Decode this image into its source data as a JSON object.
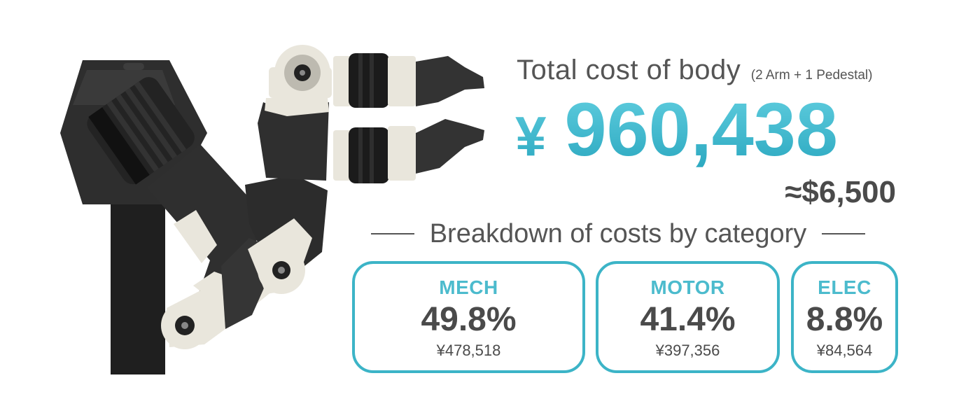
{
  "header": {
    "title": "Total cost of body",
    "subtitle": "(2 Arm + 1 Pedestal)"
  },
  "total": {
    "currency_symbol": "¥",
    "amount": "960,438",
    "usd_equivalent": "≈$6,500"
  },
  "breakdown": {
    "label": "Breakdown of costs by category"
  },
  "categories": [
    {
      "name": "MECH",
      "percent": "49.8%",
      "amount": "¥478,518"
    },
    {
      "name": "MOTOR",
      "percent": "41.4%",
      "amount": "¥397,356"
    },
    {
      "name": "ELEC",
      "percent": "8.8%",
      "amount": "¥84,564"
    }
  ],
  "colors": {
    "accent": "#3cb4c7",
    "accent_light": "#62cfe0",
    "text_dark": "#4a4a4a",
    "metal_light": "#e9e6dc",
    "body_dark": "#2b2b2b"
  }
}
